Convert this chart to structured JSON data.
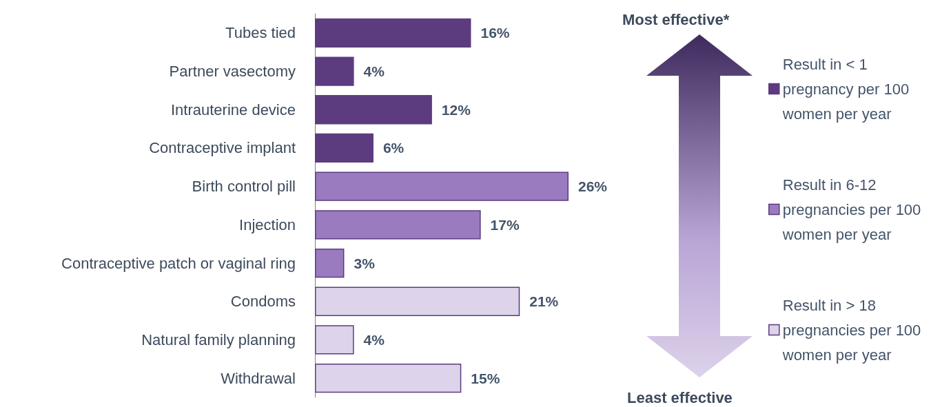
{
  "chart_data": {
    "type": "bar",
    "orientation": "horizontal",
    "stacked": true,
    "legend": "right",
    "categories": [
      "Tubes tied",
      "Partner vasectomy",
      "Intrauterine device",
      "Contraceptive implant",
      "Birth control pill",
      "Injection",
      "Contraceptive patch or vaginal ring",
      "Condoms",
      "Natural family planning",
      "Withdrawal"
    ],
    "series": [
      {
        "name": "Result in < 1 pregnancy per 100 women per year",
        "color": "#5c3b7f",
        "values": [
          16,
          4,
          12,
          6,
          null,
          null,
          null,
          null,
          null,
          null
        ],
        "value_labels": [
          "16%",
          "4%",
          "12%",
          "6%",
          null,
          null,
          null,
          null,
          null,
          null
        ]
      },
      {
        "name": "Result in 6-12 pregnancies per 100 women per year",
        "color": "#9a7bbf",
        "values": [
          null,
          null,
          null,
          null,
          26,
          17,
          3,
          null,
          null,
          null
        ],
        "value_labels": [
          null,
          null,
          null,
          null,
          "26%",
          "17%",
          "3%",
          null,
          null,
          null
        ]
      },
      {
        "name": "Result in > 18 pregnancies per 100 women per year",
        "color": "#ddd3ea",
        "values": [
          null,
          null,
          null,
          null,
          null,
          null,
          null,
          21,
          4,
          15
        ],
        "value_labels": [
          null,
          null,
          null,
          null,
          null,
          null,
          null,
          "21%",
          "4%",
          "15%"
        ]
      }
    ],
    "annotations": [
      "Most effective*",
      "Least effective"
    ]
  }
}
